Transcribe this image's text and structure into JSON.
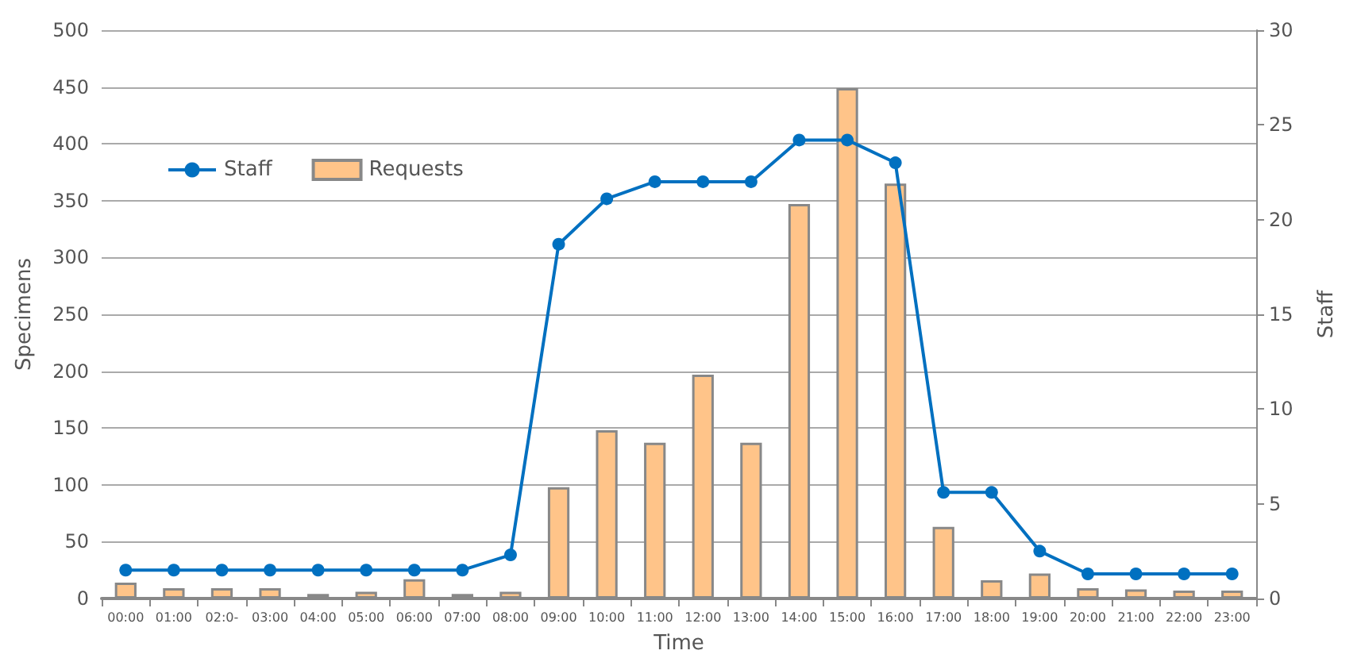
{
  "chart_data": {
    "type": "bar",
    "xlabel": "Time",
    "ylabel": "Specimens",
    "y2label": "Staff",
    "categories": [
      "00:00",
      "01:00",
      "02:0-",
      "03:00",
      "04:00",
      "05:00",
      "06:00",
      "07:00",
      "08:00",
      "09:00",
      "10:00",
      "11:00",
      "12:00",
      "13:00",
      "14:00",
      "15:00",
      "16:00",
      "17:00",
      "18:00",
      "19:00",
      "20:00",
      "21:00",
      "22:00",
      "23:00"
    ],
    "series": [
      {
        "name": "Staff",
        "type": "line",
        "axis": "y2",
        "color": "#0070c0",
        "marker": "circle",
        "line_style": "solid",
        "values": [
          1.5,
          1.5,
          1.5,
          1.5,
          1.5,
          1.5,
          1.5,
          1.5,
          2.3,
          18.7,
          21.1,
          22,
          22,
          22,
          24.2,
          24.2,
          23,
          5.6,
          5.6,
          2.5,
          1.3,
          1.3,
          1.3,
          1.3
        ]
      },
      {
        "name": "Requests",
        "color": "#ffc489",
        "values": [
          14,
          9,
          9,
          9,
          4,
          6,
          17,
          4,
          6,
          98,
          148,
          137,
          197,
          137,
          347,
          449,
          365,
          63,
          16,
          22,
          9,
          8,
          7,
          7
        ]
      }
    ],
    "ylim": [
      0,
      500
    ],
    "yticks": [
      0,
      50,
      100,
      150,
      200,
      250,
      300,
      350,
      400,
      450,
      500
    ],
    "y2lim": [
      0,
      30
    ],
    "y2ticks": [
      0,
      5,
      10,
      15,
      20,
      25,
      30
    ],
    "grid": "y",
    "legend": "top left"
  }
}
